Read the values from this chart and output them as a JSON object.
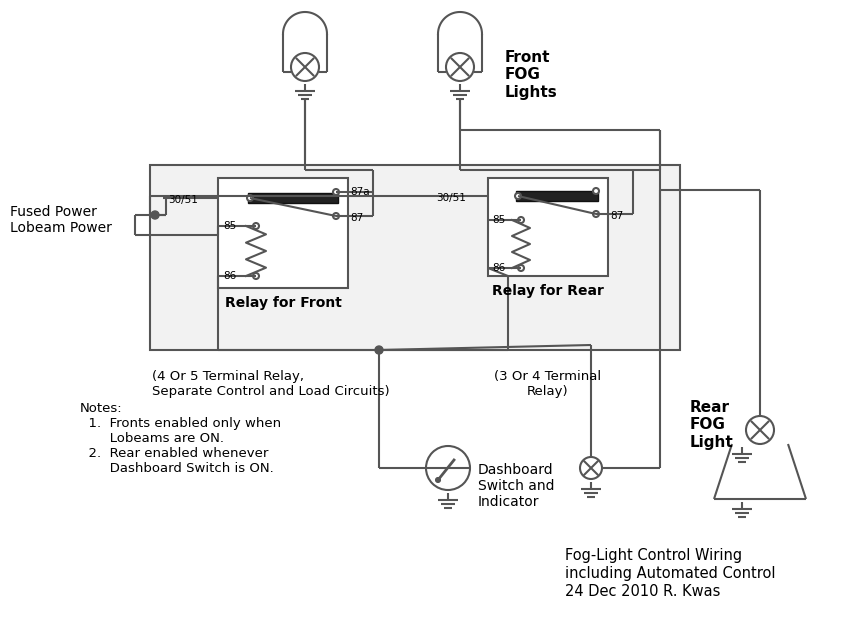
{
  "bg_color": "#ffffff",
  "lc": "#555555",
  "title_lines": [
    "Fog-Light Control Wiring",
    "including Automated Control",
    "24 Dec 2010 R. Kwas"
  ],
  "front_fog_label": "Front\nFOG\nLights",
  "rear_fog_label": "Rear\nFOG\nLight",
  "relay_front_label": "Relay for Front",
  "relay_rear_label": "Relay for Rear",
  "relay_front_sub": "(4 Or 5 Terminal Relay,\nSeparate Control and Load Circuits)",
  "relay_rear_sub": "(3 Or 4 Terminal\nRelay)",
  "fused_power_label": "Fused Power\nLobeam Power",
  "dashboard_label": "Dashboard\nSwitch and\nIndicator",
  "notes": "Notes:\n  1.  Fronts enabled only when\n       Lobeams are ON.\n  2.  Rear enabled whenever\n       Dashboard Switch is ON."
}
